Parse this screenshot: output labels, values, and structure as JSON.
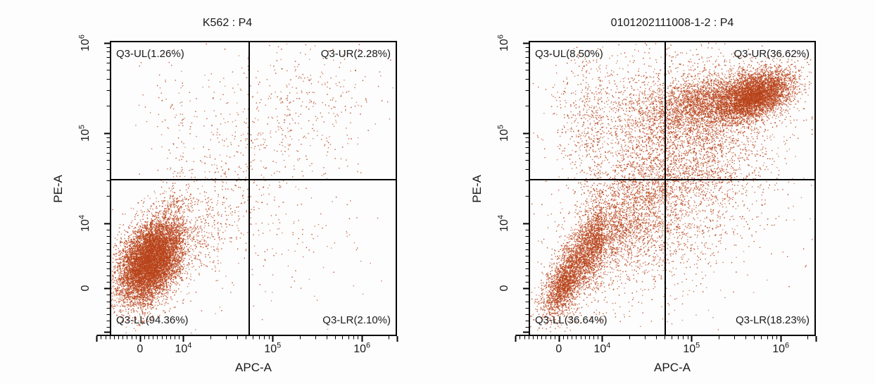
{
  "figure": {
    "background": "#fdfdfd",
    "description": "Two flow cytometry quadrant dot plots, PE-A vs APC-A"
  },
  "style": {
    "dot_color": "#b8431a",
    "dot_color_dark": "#9a3a1d",
    "axis_color": "#000000",
    "text_color": "#1a1a1a"
  },
  "flow_scale": {
    "x": {
      "f0": 0.105,
      "f4": 0.256,
      "fdec": 0.311,
      "tmin": -0.7,
      "tmax": 3.39,
      "end_tick_t": -1.0
    },
    "y": {
      "f0": 0.162,
      "f4": 0.382,
      "fdec": 0.3055,
      "tmin": -0.736,
      "tmax": 3.02,
      "end_tick_t": -0.674
    }
  },
  "chart_data": [
    {
      "type": "scatter",
      "title": "K562 : P4",
      "xlabel": "APC-A",
      "ylabel": "PE-A",
      "x_ticks": [
        {
          "t": 0,
          "label": "0",
          "exp": ""
        },
        {
          "t": 1,
          "label": "10",
          "exp": "4"
        },
        {
          "t": 2,
          "label": "10",
          "exp": "5"
        },
        {
          "t": 3,
          "label": "10",
          "exp": "6"
        }
      ],
      "y_ticks": [
        {
          "t": 0,
          "label": "0",
          "exp": ""
        },
        {
          "t": 1,
          "label": "10",
          "exp": "4"
        },
        {
          "t": 2,
          "label": "10",
          "exp": "5"
        },
        {
          "t": 3,
          "label": "10",
          "exp": "6"
        }
      ],
      "quadrants": [
        {
          "corner": "UL",
          "name": "Q3-UL",
          "percent": 1.26,
          "text": "Q3-UL(1.26%)"
        },
        {
          "corner": "UR",
          "name": "Q3-UR",
          "percent": 2.28,
          "text": "Q3-UR(2.28%)"
        },
        {
          "corner": "LL",
          "name": "Q3-LL",
          "percent": 94.36,
          "text": "Q3-LL(94.36%)"
        },
        {
          "corner": "LR",
          "name": "Q3-LR",
          "percent": 2.1,
          "text": "Q3-LR(2.10%)"
        }
      ],
      "gate": {
        "x_t": 1.72,
        "y_t": 1.5
      },
      "seed": 421,
      "clusters": [
        {
          "n": 8500,
          "cx": 0.25,
          "cy": 0.42,
          "sx": 0.38,
          "sy": 0.33,
          "rho": 0.4
        },
        {
          "n": 700,
          "cx": 0.9,
          "cy": 0.9,
          "sx": 0.5,
          "sy": 0.5,
          "rho": 0.6
        },
        {
          "n": 260,
          "cx": 1.5,
          "cy": 1.5,
          "sx": 0.55,
          "sy": 0.55,
          "rho": 0.5
        },
        {
          "n": 330,
          "cx": 2.35,
          "cy": 2.3,
          "sx": 0.45,
          "sy": 0.4,
          "rho": 0.1
        },
        {
          "n": 80,
          "cx": 0.9,
          "cy": 2.2,
          "sx": 0.5,
          "sy": 0.35,
          "rho": 0.0
        },
        {
          "n": 90,
          "cx": 2.2,
          "cy": 0.7,
          "sx": 0.45,
          "sy": 0.5,
          "rho": 0.0
        },
        {
          "n": 120,
          "cx": 1.3,
          "cy": 1.2,
          "sx": 1.0,
          "sy": 1.0,
          "rho": 0.3
        }
      ]
    },
    {
      "type": "scatter",
      "title": "0101202111008-1-2 : P4",
      "xlabel": "APC-A",
      "ylabel": "PE-A",
      "x_ticks": [
        {
          "t": 0,
          "label": "0",
          "exp": ""
        },
        {
          "t": 1,
          "label": "10",
          "exp": "4"
        },
        {
          "t": 2,
          "label": "10",
          "exp": "5"
        },
        {
          "t": 3,
          "label": "10",
          "exp": "6"
        }
      ],
      "y_ticks": [
        {
          "t": 0,
          "label": "0",
          "exp": ""
        },
        {
          "t": 1,
          "label": "10",
          "exp": "4"
        },
        {
          "t": 2,
          "label": "10",
          "exp": "5"
        },
        {
          "t": 3,
          "label": "10",
          "exp": "6"
        }
      ],
      "quadrants": [
        {
          "corner": "UL",
          "name": "Q3-UL",
          "percent": 8.5,
          "text": "Q3-UL(8.50%)"
        },
        {
          "corner": "UR",
          "name": "Q3-UR",
          "percent": 36.62,
          "text": "Q3-UR(36.62%)"
        },
        {
          "corner": "LL",
          "name": "Q3-LL",
          "percent": 36.64,
          "text": "Q3-LL(36.64%)"
        },
        {
          "corner": "LR",
          "name": "Q3-LR",
          "percent": 18.23,
          "text": "Q3-LR(18.23%)"
        }
      ],
      "gate": {
        "x_t": 1.69,
        "y_t": 1.5
      },
      "seed": 97,
      "clusters": [
        {
          "n": 4200,
          "cx": 2.72,
          "cy": 2.42,
          "sx": 0.2,
          "sy": 0.14,
          "rho": 0.45
        },
        {
          "n": 2600,
          "cx": 2.2,
          "cy": 2.35,
          "sx": 0.38,
          "sy": 0.16,
          "rho": 0.35
        },
        {
          "n": 1800,
          "cx": 2.0,
          "cy": 1.9,
          "sx": 0.45,
          "sy": 0.45,
          "rho": 0.2
        },
        {
          "n": 3800,
          "cx": 0.75,
          "cy": 0.65,
          "sx": 0.55,
          "sy": 0.5,
          "rho": 0.83
        },
        {
          "n": 900,
          "cx": 0.08,
          "cy": 0.0,
          "sx": 0.18,
          "sy": 0.22,
          "rho": 0.5
        },
        {
          "n": 2600,
          "cx": 1.55,
          "cy": 1.2,
          "sx": 0.6,
          "sy": 0.7,
          "rho": 0.45
        },
        {
          "n": 700,
          "cx": 0.95,
          "cy": 2.2,
          "sx": 0.55,
          "sy": 0.35,
          "rho": 0.0
        },
        {
          "n": 700,
          "cx": 1.5,
          "cy": 1.5,
          "sx": 1.1,
          "sy": 1.0,
          "rho": 0.3
        }
      ]
    }
  ]
}
